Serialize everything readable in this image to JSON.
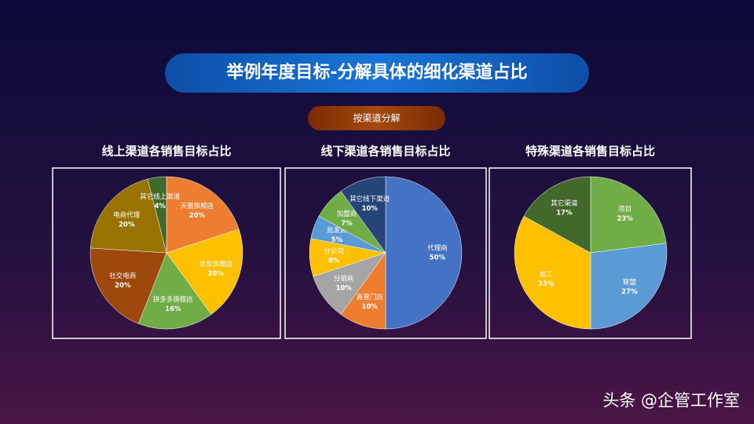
{
  "header": {
    "title": "举例年度目标-分解具体的细化渠道占比",
    "subtitle": "按渠道分解"
  },
  "watermark": "头条 @企管工作室",
  "chart_data": [
    {
      "type": "pie",
      "title": "线上渠道各销售目标占比",
      "categories": [
        "天猫旗舰店",
        "京东旗舰店",
        "拼多多旗舰店",
        "社交电商",
        "电商代理",
        "其它线上渠道"
      ],
      "values": [
        20,
        20,
        16,
        20,
        20,
        4
      ],
      "value_labels": [
        "20%",
        "20%",
        "16%",
        "20%",
        "20%",
        "4%"
      ],
      "colors": [
        "#ED7D31",
        "#FFC000",
        "#70AD47",
        "#9E480E",
        "#997300",
        "#43682B"
      ]
    },
    {
      "type": "pie",
      "title": "线下渠道各销售目标占比",
      "categories": [
        "代理商",
        "直营门店",
        "分销商",
        "分公司",
        "批发商",
        "加盟商",
        "其它线下渠道"
      ],
      "values": [
        50,
        10,
        10,
        8,
        5,
        7,
        10
      ],
      "value_labels": [
        "50%",
        "10%",
        "10%",
        "8%",
        "5%",
        "7%",
        "10%"
      ],
      "colors": [
        "#4472C4",
        "#ED7D31",
        "#A5A5A5",
        "#FFC000",
        "#5B9BD5",
        "#70AD47",
        "#264478"
      ]
    },
    {
      "type": "pie",
      "title": "特殊渠道各销售目标占比",
      "categories": [
        "项目",
        "联盟",
        "加工",
        "其它渠道"
      ],
      "values": [
        23,
        27,
        33,
        17
      ],
      "value_labels": [
        "23%",
        "27%",
        "33%",
        "17%"
      ],
      "colors": [
        "#70AD47",
        "#5B9BD5",
        "#FFC000",
        "#43682B"
      ]
    }
  ]
}
